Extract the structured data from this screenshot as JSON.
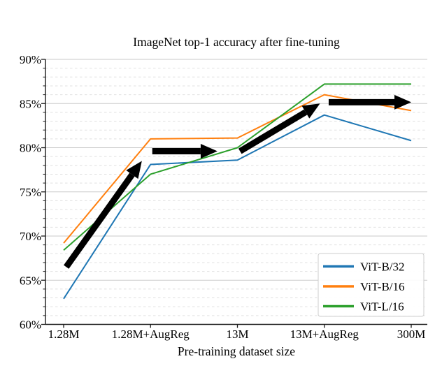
{
  "figure": {
    "background": "#ffffff"
  },
  "chart_data": {
    "type": "line",
    "title": "ImageNet top-1 accuracy after fine-tuning",
    "xlabel": "Pre-training dataset size",
    "ylabel": "",
    "categories": [
      "1.28M",
      "1.28M+AugReg",
      "13M",
      "13M+AugReg",
      "300M"
    ],
    "series": [
      {
        "name": "ViT-B/32",
        "color": "#1f77b4",
        "values": [
          62.9,
          78.1,
          78.6,
          83.7,
          80.8
        ]
      },
      {
        "name": "ViT-B/16",
        "color": "#ff7f0e",
        "values": [
          69.2,
          81.0,
          81.1,
          86.0,
          84.2
        ]
      },
      {
        "name": "ViT-L/16",
        "color": "#2ca02c",
        "values": [
          68.4,
          77.0,
          80.0,
          87.2,
          87.2
        ]
      }
    ],
    "ylim": [
      60,
      90
    ],
    "yticks": {
      "values": [
        60,
        65,
        70,
        75,
        80,
        85,
        90
      ],
      "labels": [
        "60%",
        "65%",
        "70%",
        "75%",
        "80%",
        "85%",
        "90%"
      ]
    },
    "minor_tick_step": 1,
    "grid": {
      "major_color": "#cacaca",
      "minor_color": "#e0e0e0",
      "minor_style": "dashed"
    },
    "axis_color": "#1a1a1a",
    "text_color": "#000000",
    "legend": {
      "position": "lower-right",
      "entries": [
        "ViT-B/32",
        "ViT-B/16",
        "ViT-L/16"
      ]
    },
    "annotations": {
      "arrows": {
        "color": "#000000",
        "items": [
          {
            "from": [
              0.03,
              66.5
            ],
            "to": [
              0.9,
              78.5
            ]
          },
          {
            "from": [
              1.02,
              79.6
            ],
            "to": [
              1.77,
              79.6
            ]
          },
          {
            "from": [
              2.03,
              79.6
            ],
            "to": [
              2.95,
              85.0
            ]
          },
          {
            "from": [
              3.05,
              85.15
            ],
            "to": [
              4.0,
              85.15
            ]
          }
        ]
      }
    }
  }
}
